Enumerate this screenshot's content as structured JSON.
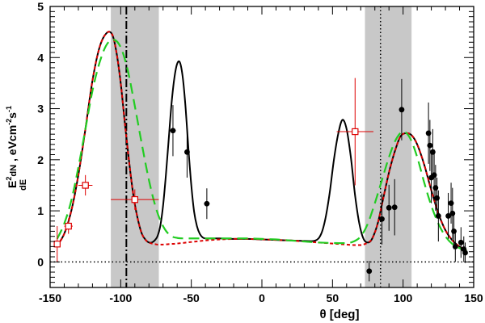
{
  "chart_data": {
    "type": "scatter",
    "title": "",
    "xlabel": "θ [deg]",
    "ylabel": "E²dN/dE, eVcm⁻²s⁻¹",
    "ylabel_parts": {
      "e": "E",
      "pow": "2",
      "num": "dN",
      "den": "dE",
      "unit_a": ", eVcm",
      "unit_pow_a": "-2",
      "unit_b": "s",
      "unit_pow_b": "-1"
    },
    "xlim": [
      -150,
      150
    ],
    "ylim": [
      -0.5,
      5
    ],
    "xticks": [
      -150,
      -100,
      -50,
      0,
      50,
      100,
      150
    ],
    "yticks": [
      0,
      1,
      2,
      3,
      4,
      5
    ],
    "grid": false,
    "shaded_bands": [
      {
        "name": "band-left",
        "x0": -107,
        "x1": -73,
        "color": "#c8c8c8"
      },
      {
        "name": "band-right",
        "x0": 73,
        "x1": 106,
        "color": "#c8c8c8"
      }
    ],
    "vertical_lines": [
      {
        "name": "dashdot-line",
        "x": -96,
        "style": "dashdot",
        "color": "#000000"
      },
      {
        "name": "dotted-line",
        "x": 84,
        "style": "dotted",
        "color": "#000000"
      }
    ],
    "reference_lines": [
      {
        "name": "zero-line",
        "y": 0,
        "style": "dotted",
        "color": "#000000"
      }
    ],
    "curves": [
      {
        "name": "black-solid",
        "style": "solid",
        "color": "#000000",
        "x": [
          -145,
          -140,
          -135,
          -130,
          -125,
          -120,
          -115,
          -110,
          -106,
          -103,
          -100,
          -97,
          -94,
          -91,
          -88,
          -85,
          -82,
          -80,
          -78,
          -76,
          -74,
          -72,
          -70,
          -68,
          -66,
          -64,
          -62,
          -60,
          -58,
          -56,
          -54,
          -52,
          -50,
          -48,
          -46,
          -44,
          -42,
          -40,
          -35,
          -30,
          -20,
          -10,
          0,
          10,
          20,
          30,
          38,
          42,
          45,
          48,
          51,
          54,
          57,
          60,
          63,
          66,
          69,
          72,
          75,
          78,
          82,
          86,
          90,
          94,
          98,
          102,
          106,
          110,
          115,
          120,
          125,
          130,
          135,
          140,
          145
        ],
        "y": [
          0.32,
          0.55,
          1.0,
          1.7,
          2.6,
          3.55,
          4.2,
          4.48,
          4.45,
          4.1,
          3.5,
          2.7,
          1.95,
          1.3,
          0.85,
          0.55,
          0.42,
          0.38,
          0.38,
          0.42,
          0.5,
          0.7,
          1.1,
          1.7,
          2.4,
          3.1,
          3.6,
          3.88,
          3.9,
          3.6,
          3.0,
          2.2,
          1.5,
          0.98,
          0.7,
          0.55,
          0.48,
          0.46,
          0.46,
          0.46,
          0.45,
          0.45,
          0.44,
          0.43,
          0.42,
          0.41,
          0.42,
          0.55,
          0.85,
          1.35,
          2.0,
          2.5,
          2.78,
          2.6,
          2.05,
          1.3,
          0.75,
          0.45,
          0.38,
          0.45,
          0.75,
          1.25,
          1.75,
          2.15,
          2.45,
          2.52,
          2.48,
          2.3,
          1.9,
          1.4,
          0.95,
          0.62,
          0.42,
          0.3,
          0.22
        ]
      },
      {
        "name": "red-dashed",
        "style": "dashed",
        "color": "#dd0000",
        "x": [
          -145,
          -140,
          -135,
          -130,
          -125,
          -120,
          -115,
          -110,
          -106,
          -103,
          -100,
          -97,
          -94,
          -91,
          -88,
          -85,
          -82,
          -80,
          -78,
          -76,
          -74,
          -72,
          -70,
          -65,
          -60,
          -50,
          -40,
          -30,
          -20,
          -10,
          0,
          10,
          20,
          30,
          40,
          50,
          55,
          60,
          65,
          70,
          72,
          75,
          78,
          82,
          86,
          90,
          94,
          98,
          102,
          106,
          110,
          115,
          120,
          125,
          130,
          135,
          140,
          145
        ],
        "y": [
          0.32,
          0.55,
          1.0,
          1.7,
          2.6,
          3.55,
          4.2,
          4.48,
          4.45,
          4.1,
          3.5,
          2.7,
          1.95,
          1.3,
          0.85,
          0.55,
          0.42,
          0.38,
          0.36,
          0.35,
          0.34,
          0.34,
          0.34,
          0.35,
          0.36,
          0.39,
          0.42,
          0.44,
          0.45,
          0.45,
          0.44,
          0.43,
          0.42,
          0.4,
          0.38,
          0.36,
          0.35,
          0.34,
          0.33,
          0.33,
          0.34,
          0.38,
          0.45,
          0.75,
          1.25,
          1.75,
          2.15,
          2.45,
          2.52,
          2.48,
          2.3,
          1.9,
          1.4,
          0.95,
          0.62,
          0.42,
          0.3,
          0.22
        ]
      },
      {
        "name": "green-dashed",
        "style": "longdash",
        "color": "#22cc22",
        "x": [
          -145,
          -140,
          -135,
          -130,
          -125,
          -120,
          -115,
          -110,
          -105,
          -100,
          -95,
          -90,
          -85,
          -80,
          -75,
          -70,
          -65,
          -60,
          -55,
          -50,
          -40,
          -30,
          -20,
          -10,
          0,
          10,
          20,
          30,
          40,
          50,
          60,
          65,
          70,
          75,
          80,
          85,
          90,
          95,
          100,
          105,
          110,
          115,
          120,
          125,
          130,
          135,
          140,
          145
        ],
        "y": [
          0.45,
          0.75,
          1.2,
          1.85,
          2.6,
          3.35,
          3.9,
          4.25,
          4.35,
          4.2,
          3.75,
          3.05,
          2.3,
          1.6,
          1.05,
          0.7,
          0.52,
          0.47,
          0.46,
          0.46,
          0.46,
          0.46,
          0.46,
          0.46,
          0.45,
          0.44,
          0.42,
          0.4,
          0.38,
          0.37,
          0.37,
          0.4,
          0.5,
          0.75,
          1.15,
          1.6,
          2.05,
          2.4,
          2.55,
          2.42,
          2.05,
          1.55,
          1.1,
          0.75,
          0.5,
          0.35,
          0.27,
          0.22
        ]
      }
    ],
    "series": [
      {
        "name": "black-circles",
        "marker": "filled-circle",
        "color": "#000000",
        "points": [
          {
            "x": -63,
            "y": 2.57,
            "yerr": 0.5,
            "xerr": 2
          },
          {
            "x": -53,
            "y": 2.15,
            "yerr": 0.5,
            "xerr": 1
          },
          {
            "x": -39,
            "y": 1.14,
            "yerr": 0.3,
            "xerr": 2
          },
          {
            "x": 76,
            "y": -0.18,
            "yerr": 0.2,
            "xerr": 0
          },
          {
            "x": 85,
            "y": 0.84,
            "yerr": 0.5,
            "xerr": 1
          },
          {
            "x": 90,
            "y": 1.06,
            "yerr": 0.45,
            "xerr": 0
          },
          {
            "x": 94,
            "y": 1.07,
            "yerr": 0.55,
            "xerr": 0
          },
          {
            "x": 99,
            "y": 2.98,
            "yerr": 0.6,
            "xerr": 0
          },
          {
            "x": 118,
            "y": 2.52,
            "yerr": 0.6,
            "xerr": 0
          },
          {
            "x": 119,
            "y": 2.28,
            "yerr": 0.5,
            "xerr": 0
          },
          {
            "x": 120,
            "y": 1.65,
            "yerr": 0.5,
            "xerr": 0
          },
          {
            "x": 121,
            "y": 2.15,
            "yerr": 0.45,
            "xerr": 0
          },
          {
            "x": 122,
            "y": 1.7,
            "yerr": 0.5,
            "xerr": 0
          },
          {
            "x": 123,
            "y": 1.45,
            "yerr": 0.45,
            "xerr": 0
          },
          {
            "x": 124,
            "y": 1.25,
            "yerr": 0.4,
            "xerr": 0
          },
          {
            "x": 125,
            "y": 0.9,
            "yerr": 0.5,
            "xerr": 0
          },
          {
            "x": 132,
            "y": 0.9,
            "yerr": 0.45,
            "xerr": 0
          },
          {
            "x": 134,
            "y": 1.15,
            "yerr": 0.4,
            "xerr": 0
          },
          {
            "x": 135,
            "y": 0.95,
            "yerr": 0.5,
            "xerr": 0
          },
          {
            "x": 136,
            "y": 0.6,
            "yerr": 0.35,
            "xerr": 0
          },
          {
            "x": 137,
            "y": 0.3,
            "yerr": 0.3,
            "xerr": 0
          },
          {
            "x": 141,
            "y": 0.38,
            "yerr": 0.3,
            "xerr": 0
          },
          {
            "x": 143,
            "y": 0.25,
            "yerr": 0.25,
            "xerr": 0
          },
          {
            "x": 144,
            "y": 0.18,
            "yerr": 0.2,
            "xerr": 0
          }
        ]
      },
      {
        "name": "red-squares",
        "marker": "open-square",
        "color": "#dd0000",
        "points": [
          {
            "x": -145,
            "y": 0.35,
            "yerr": 0.35,
            "xerr": 2
          },
          {
            "x": -137,
            "y": 0.7,
            "yerr": 0.15,
            "xerr": 3
          },
          {
            "x": -125,
            "y": 1.5,
            "yerr": 0.2,
            "xerr": 5
          },
          {
            "x": -90,
            "y": 1.22,
            "yerr": 0.2,
            "xerr": 17
          },
          {
            "x": 66,
            "y": 2.55,
            "yerr": 1.05,
            "xerr": 13
          }
        ]
      }
    ]
  }
}
